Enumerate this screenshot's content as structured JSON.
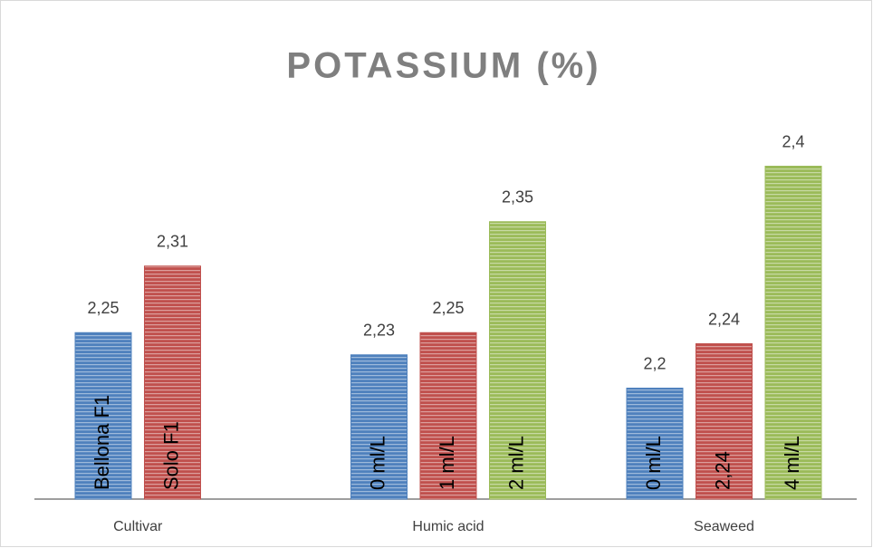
{
  "chart_data": {
    "type": "bar",
    "title": "POTASSIUM (%)",
    "categories": [
      "Cultivar",
      "Humic acid",
      "Seaweed"
    ],
    "groups": [
      {
        "bars": [
          {
            "label": "Bellona F1",
            "value": 2.25,
            "value_label": "2,25",
            "color": "#4f81bd"
          },
          {
            "label": "Solo F1",
            "value": 2.31,
            "value_label": "2,31",
            "color": "#c0504d"
          }
        ]
      },
      {
        "bars": [
          {
            "label": "0 ml/L",
            "value": 2.23,
            "value_label": "2,23",
            "color": "#4f81bd"
          },
          {
            "label": "1 ml/L",
            "value": 2.25,
            "value_label": "2,25",
            "color": "#c0504d"
          },
          {
            "label": "2 ml/L",
            "value": 2.35,
            "value_label": "2,35",
            "color": "#9bbb59"
          }
        ]
      },
      {
        "bars": [
          {
            "label": "0 ml/L",
            "value": 2.2,
            "value_label": "2,2",
            "color": "#4f81bd"
          },
          {
            "label": "2,24",
            "value": 2.24,
            "value_label": "2,24",
            "color": "#c0504d"
          },
          {
            "label": "4 ml/L",
            "value": 2.4,
            "value_label": "2,4",
            "color": "#9bbb59"
          }
        ]
      }
    ],
    "ylim": [
      2.1,
      2.5
    ]
  }
}
